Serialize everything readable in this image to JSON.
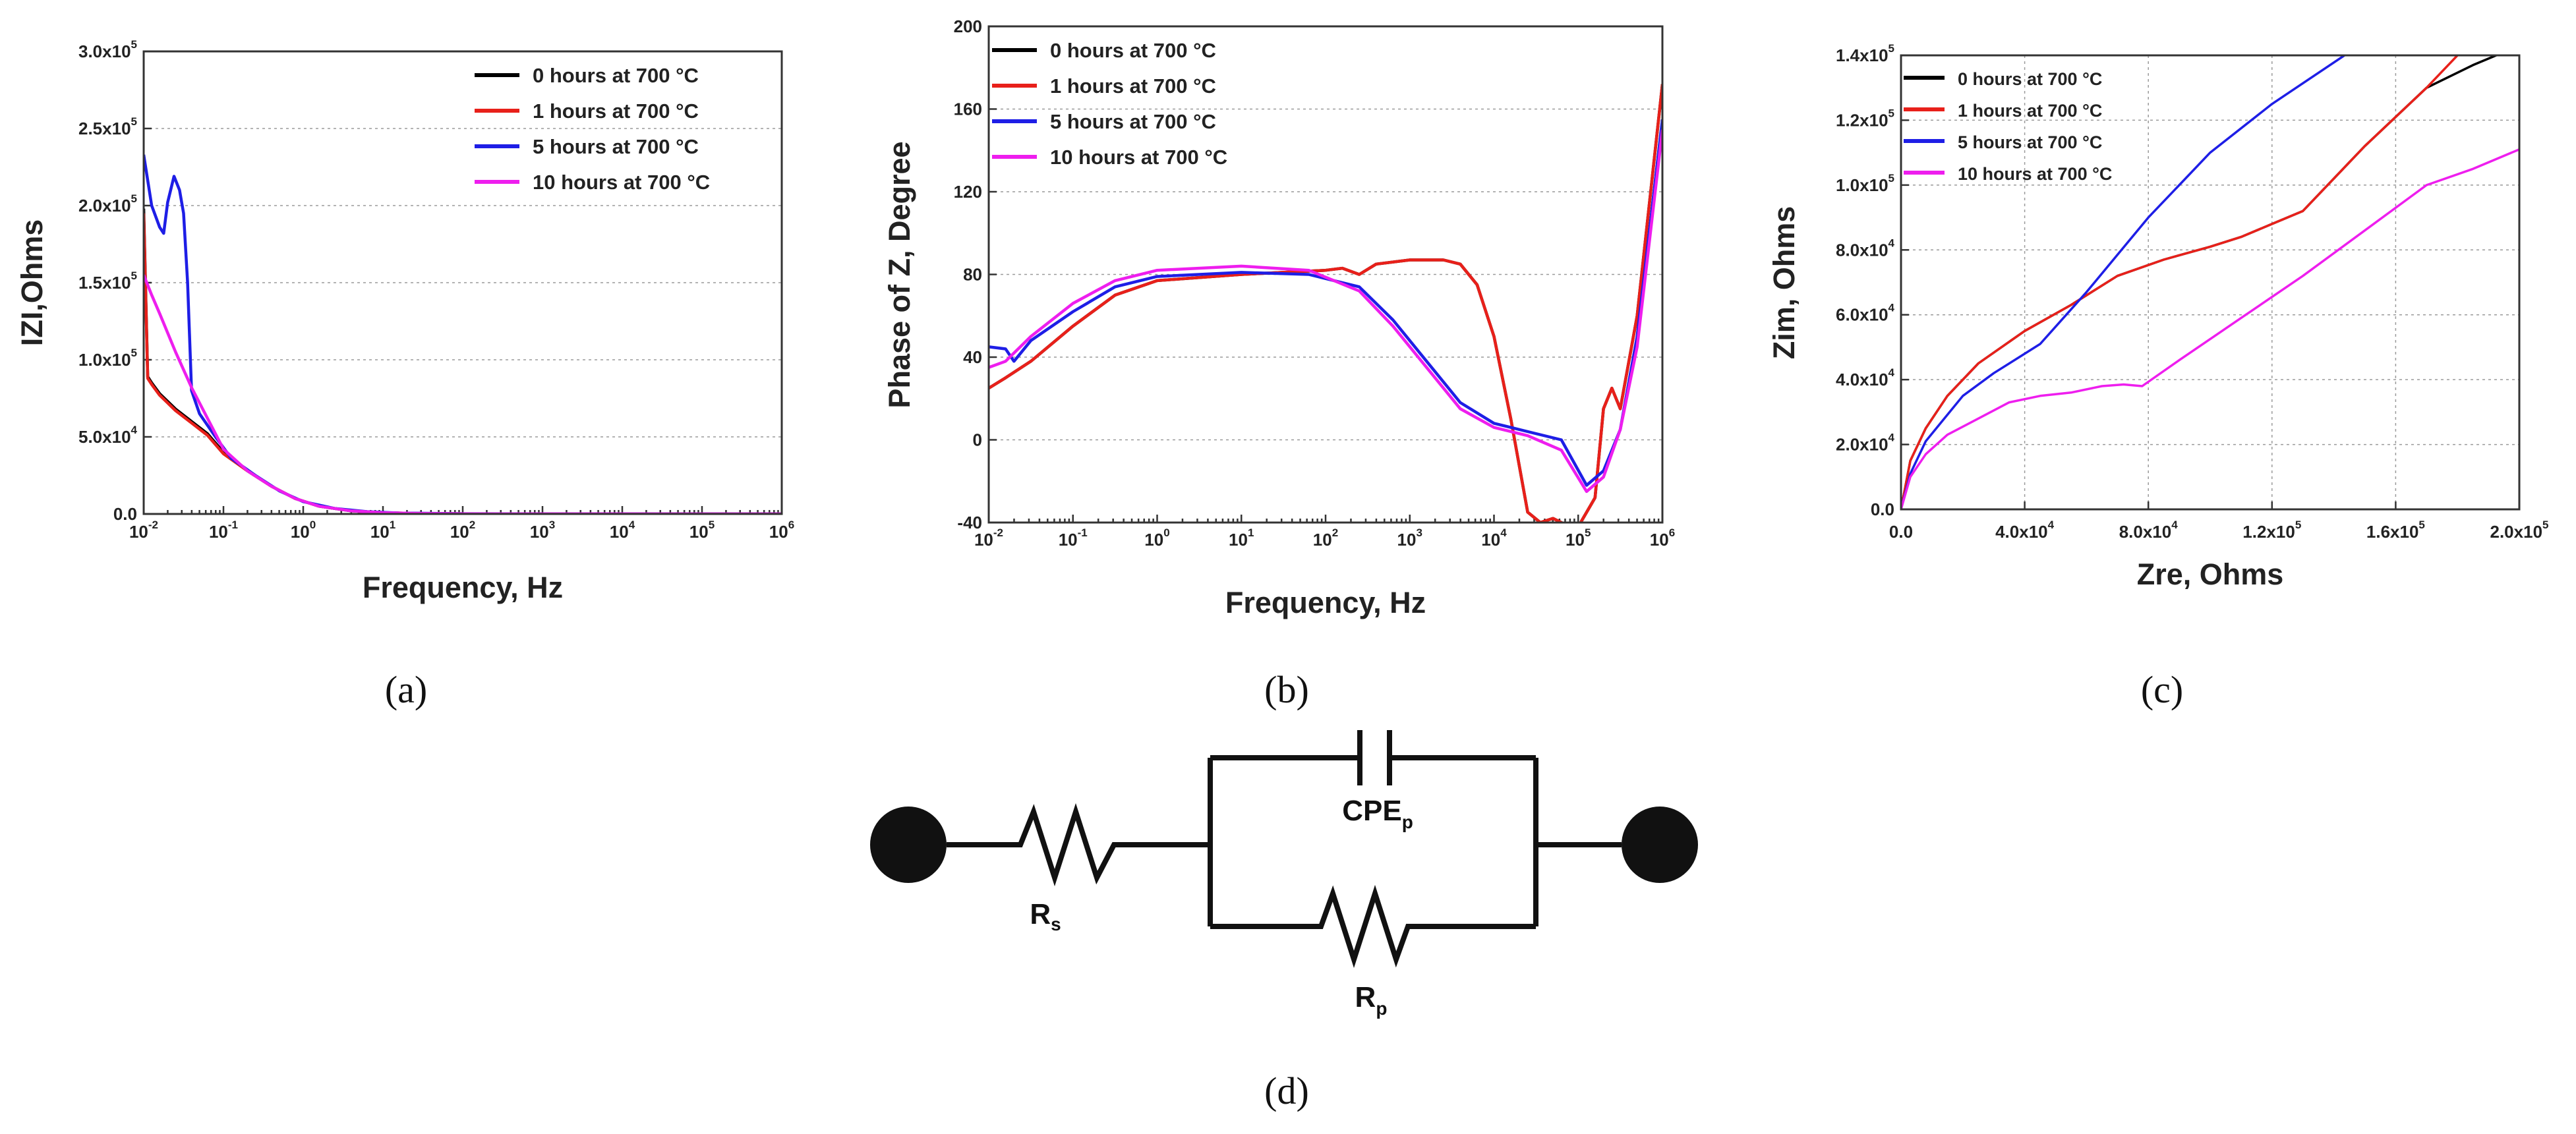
{
  "chart_data": [
    {
      "id": "a",
      "type": "line",
      "panel_label": "(a)",
      "xlabel": "Frequency, Hz",
      "ylabel": "IZI,Ohms",
      "xscale": "log",
      "x_tick_labels": [
        {
          "base": "10",
          "exp": "-2"
        },
        {
          "base": "10",
          "exp": "-1"
        },
        {
          "base": "10",
          "exp": "0"
        },
        {
          "base": "10",
          "exp": "1"
        },
        {
          "base": "10",
          "exp": "2"
        },
        {
          "base": "10",
          "exp": "3"
        },
        {
          "base": "10",
          "exp": "4"
        },
        {
          "base": "10",
          "exp": "5"
        },
        {
          "base": "10",
          "exp": "6"
        }
      ],
      "y_tick_labels": [
        {
          "mant": "0.0",
          "exp": ""
        },
        {
          "mant": "5.0x10",
          "exp": "4"
        },
        {
          "mant": "1.0x10",
          "exp": "5"
        },
        {
          "mant": "1.5x10",
          "exp": "5"
        },
        {
          "mant": "2.0x10",
          "exp": "5"
        },
        {
          "mant": "2.5x10",
          "exp": "5"
        },
        {
          "mant": "3.0x10",
          "exp": "5"
        }
      ],
      "xlim": [
        -2,
        6
      ],
      "ylim": [
        0,
        300000
      ],
      "grid": true,
      "legend_position": "top-right",
      "series": [
        {
          "name": "0 hours at 700 °C",
          "color": "#000000",
          "x": [
            -2,
            -1.95,
            -1.9,
            -1.8,
            -1.6,
            -1.4,
            -1.2,
            -1,
            -0.7,
            -0.4,
            -0.1,
            0.2,
            0.6,
            1,
            1.5,
            2,
            3,
            4,
            5,
            6
          ],
          "y": [
            198000,
            89000,
            85000,
            78000,
            68000,
            60000,
            52000,
            40000,
            28000,
            18000,
            10000,
            5000,
            2000,
            800,
            300,
            100,
            50,
            30,
            20,
            10
          ]
        },
        {
          "name": "1 hours at 700 °C",
          "color": "#e8201a",
          "x": [
            -2,
            -1.95,
            -1.9,
            -1.8,
            -1.6,
            -1.4,
            -1.2,
            -1,
            -0.7,
            -0.4,
            -0.1,
            0.2,
            0.6,
            1,
            1.5,
            2,
            3,
            4,
            5,
            6
          ],
          "y": [
            195000,
            88000,
            84000,
            77000,
            67000,
            59000,
            51000,
            39000,
            28000,
            18000,
            10000,
            5000,
            2000,
            800,
            300,
            100,
            50,
            30,
            20,
            10
          ]
        },
        {
          "name": "5 hours at 700 °C",
          "color": "#1e1ee6",
          "x": [
            -2,
            -1.9,
            -1.8,
            -1.75,
            -1.7,
            -1.62,
            -1.55,
            -1.5,
            -1.45,
            -1.4,
            -1.3,
            -1.1,
            -0.9,
            -0.6,
            -0.3,
            0,
            0.4,
            0.8,
            1.2,
            2,
            3,
            4,
            5,
            6
          ],
          "y": [
            233000,
            200000,
            186000,
            182000,
            202000,
            219000,
            210000,
            195000,
            150000,
            80000,
            65000,
            50000,
            36000,
            25000,
            15000,
            8000,
            3500,
            1500,
            600,
            150,
            50,
            30,
            20,
            10
          ]
        },
        {
          "name": "10 hours at 700 °C",
          "color": "#ee1eee",
          "x": [
            -2,
            -1.9,
            -1.8,
            -1.6,
            -1.4,
            -1.2,
            -1,
            -0.7,
            -0.4,
            -0.1,
            0.2,
            0.6,
            1,
            1.5,
            2,
            3,
            4,
            5,
            6
          ],
          "y": [
            155000,
            142000,
            130000,
            105000,
            82000,
            62000,
            42000,
            28000,
            18000,
            10000,
            5000,
            2000,
            800,
            300,
            100,
            50,
            30,
            20,
            10
          ]
        }
      ]
    },
    {
      "id": "b",
      "type": "line",
      "panel_label": "(b)",
      "xlabel": "Frequency, Hz",
      "ylabel": "Phase of Z, Degree",
      "xscale": "log",
      "x_tick_labels": [
        {
          "base": "10",
          "exp": "-2"
        },
        {
          "base": "10",
          "exp": "-1"
        },
        {
          "base": "10",
          "exp": "0"
        },
        {
          "base": "10",
          "exp": "1"
        },
        {
          "base": "10",
          "exp": "2"
        },
        {
          "base": "10",
          "exp": "3"
        },
        {
          "base": "10",
          "exp": "4"
        },
        {
          "base": "10",
          "exp": "5"
        },
        {
          "base": "10",
          "exp": "6"
        }
      ],
      "y_tick_labels": [
        "-40",
        "0",
        "40",
        "80",
        "120",
        "160",
        "200"
      ],
      "xlim": [
        -2,
        6
      ],
      "ylim": [
        -40,
        200
      ],
      "grid": true,
      "legend_position": "top-left",
      "series": [
        {
          "name": "0 hours at 700 °C",
          "color": "#000000",
          "x": [
            -2,
            -1.8,
            -1.5,
            -1,
            -0.5,
            0,
            1,
            2,
            2.2,
            2.4,
            2.6,
            3,
            3.4,
            3.6,
            3.8,
            4,
            4.2,
            4.4,
            4.55,
            4.7,
            4.9,
            5,
            5.2,
            5.3,
            5.4,
            5.5,
            5.7,
            6
          ],
          "y": [
            25,
            30,
            38,
            55,
            70,
            77,
            80,
            82,
            83,
            80,
            85,
            87,
            87,
            85,
            75,
            50,
            10,
            -35,
            -40,
            -38,
            -42,
            -42,
            -28,
            15,
            25,
            15,
            60,
            172
          ]
        },
        {
          "name": "1 hours at 700 °C",
          "color": "#e8201a",
          "x": [
            -2,
            -1.8,
            -1.5,
            -1,
            -0.5,
            0,
            1,
            2,
            2.2,
            2.4,
            2.6,
            3,
            3.4,
            3.6,
            3.8,
            4,
            4.2,
            4.4,
            4.55,
            4.7,
            4.9,
            5,
            5.2,
            5.3,
            5.4,
            5.5,
            5.7,
            6
          ],
          "y": [
            25,
            30,
            38,
            55,
            70,
            77,
            80,
            82,
            83,
            80,
            85,
            87,
            87,
            85,
            75,
            50,
            10,
            -35,
            -40,
            -38,
            -42,
            -42,
            -28,
            15,
            25,
            15,
            60,
            172
          ]
        },
        {
          "name": "5 hours at 700 °C",
          "color": "#1e1ee6",
          "x": [
            -2,
            -1.8,
            -1.7,
            -1.5,
            -1,
            -0.5,
            0,
            1,
            1.8,
            2.4,
            2.8,
            3.2,
            3.6,
            4,
            4.4,
            4.8,
            5.1,
            5.3,
            5.5,
            5.7,
            6
          ],
          "y": [
            45,
            44,
            38,
            48,
            62,
            74,
            79,
            81,
            80,
            74,
            58,
            38,
            18,
            8,
            4,
            0,
            -22,
            -15,
            5,
            50,
            155
          ]
        },
        {
          "name": "10 hours at 700 °C",
          "color": "#ee1eee",
          "x": [
            -2,
            -1.8,
            -1.5,
            -1,
            -0.5,
            0,
            1,
            1.8,
            2.4,
            2.8,
            3.2,
            3.6,
            4,
            4.4,
            4.8,
            5.1,
            5.3,
            5.5,
            5.7,
            6
          ],
          "y": [
            35,
            38,
            50,
            66,
            77,
            82,
            84,
            82,
            72,
            55,
            35,
            15,
            6,
            2,
            -5,
            -25,
            -18,
            5,
            45,
            150
          ]
        }
      ]
    },
    {
      "id": "c",
      "type": "line",
      "panel_label": "(c)",
      "xlabel": "Zre, Ohms",
      "ylabel": "Zim, Ohms",
      "xscale": "linear",
      "x_tick_labels": [
        {
          "mant": "0.0",
          "exp": ""
        },
        {
          "mant": "4.0x10",
          "exp": "4"
        },
        {
          "mant": "8.0x10",
          "exp": "4"
        },
        {
          "mant": "1.2x10",
          "exp": "5"
        },
        {
          "mant": "1.6x10",
          "exp": "5"
        },
        {
          "mant": "2.0x10",
          "exp": "5"
        }
      ],
      "y_tick_labels": [
        {
          "mant": "0.0",
          "exp": ""
        },
        {
          "mant": "2.0x10",
          "exp": "4"
        },
        {
          "mant": "4.0x10",
          "exp": "4"
        },
        {
          "mant": "6.0x10",
          "exp": "4"
        },
        {
          "mant": "8.0x10",
          "exp": "4"
        },
        {
          "mant": "1.0x10",
          "exp": "5"
        },
        {
          "mant": "1.2x10",
          "exp": "5"
        },
        {
          "mant": "1.4x10",
          "exp": "5"
        }
      ],
      "xlim": [
        0,
        200000
      ],
      "ylim": [
        0,
        140000
      ],
      "grid": true,
      "legend_position": "top-left",
      "series": [
        {
          "name": "0 hours at 700 °C",
          "color": "#000000",
          "x": [
            0,
            3000,
            8000,
            15000,
            25000,
            40000,
            55000,
            70000,
            85000,
            100000,
            110000,
            120000,
            130000,
            150000,
            170000,
            185000,
            195000
          ],
          "y": [
            0,
            15000,
            25000,
            35000,
            45000,
            55000,
            63000,
            72000,
            77000,
            81000,
            84000,
            88000,
            92000,
            112000,
            130000,
            137000,
            141000
          ]
        },
        {
          "name": "1 hours at 700 °C",
          "color": "#e8201a",
          "x": [
            0,
            3000,
            8000,
            15000,
            25000,
            40000,
            55000,
            70000,
            85000,
            100000,
            110000,
            120000,
            130000,
            150000,
            170000,
            180000
          ],
          "y": [
            0,
            15000,
            25000,
            35000,
            45000,
            55000,
            63000,
            72000,
            77000,
            81000,
            84000,
            88000,
            92000,
            112000,
            130000,
            140000
          ]
        },
        {
          "name": "5 hours at 700 °C",
          "color": "#1e1ee6",
          "x": [
            0,
            3000,
            8000,
            20000,
            30000,
            45000,
            60000,
            80000,
            100000,
            120000,
            145000
          ],
          "y": [
            0,
            11000,
            21000,
            35000,
            42000,
            51000,
            67000,
            90000,
            110000,
            125000,
            141000
          ]
        },
        {
          "name": "10 hours at 700 °C",
          "color": "#ee1eee",
          "x": [
            0,
            3000,
            8000,
            15000,
            25000,
            35000,
            45000,
            55000,
            65000,
            72000,
            78000,
            90000,
            110000,
            130000,
            150000,
            170000,
            185000,
            200000
          ],
          "y": [
            0,
            10000,
            17000,
            23000,
            28000,
            33000,
            35000,
            36000,
            38000,
            38500,
            38000,
            46000,
            59000,
            72000,
            86000,
            100000,
            105000,
            111000
          ]
        }
      ]
    }
  ],
  "circuit": {
    "panel_label": "(d)",
    "rs_label": "R",
    "rs_sub": "s",
    "cpe_label": "CPE",
    "cpe_sub": "p",
    "rp_label": "R",
    "rp_sub": "p"
  }
}
